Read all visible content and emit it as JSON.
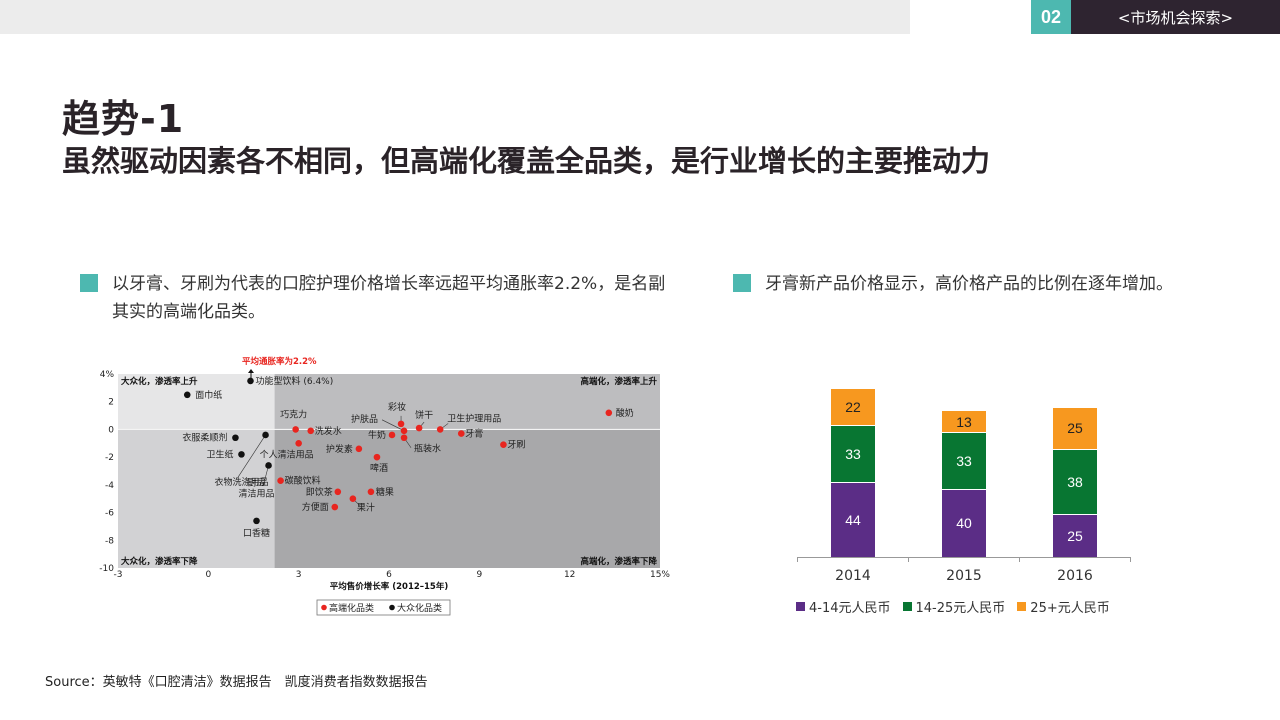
{
  "header": {
    "section_number": "02",
    "section_title": "<市场机会探索>",
    "accent_color": "#4db8b0",
    "dark_color": "#2e2430"
  },
  "title": {
    "main": "趋势-1",
    "subtitle": "虽然驱动因素各不相同，但高端化覆盖全品类，是行业增长的主要推动力"
  },
  "bullets": [
    {
      "text": "以牙膏、牙刷为代表的口腔护理价格增长率远超平均通胀率2.2%，是名副其实的高端化品类。"
    },
    {
      "text": "牙膏新产品价格显示，高价格产品的比例在逐年增加。"
    }
  ],
  "chart_data": [
    {
      "type": "scatter",
      "title": "",
      "xlabel": "平均售价增长率 (2012–15年)",
      "ylabel": "",
      "xlim": [
        -3,
        15
      ],
      "ylim": [
        -10,
        4
      ],
      "x_ticks": [
        "-3",
        "0",
        "3",
        "6",
        "9",
        "12",
        "15%"
      ],
      "y_ticks": [
        "4%",
        "2",
        "0",
        "-2",
        "-4",
        "-6",
        "-8",
        "-10"
      ],
      "annotation_inflation": "平均通胀率为2.2%",
      "inflation_x": 2.2,
      "quadrants": {
        "top_left": "大众化，渗透率上升",
        "top_right": "高端化，渗透率上升",
        "bottom_left": "大众化，渗透率下降",
        "bottom_right": "高端化，渗透率下降"
      },
      "legend": [
        "高端化品类",
        "大众化品类"
      ],
      "series": [
        {
          "name": "高端化品类",
          "color": "#e8251f",
          "points": [
            {
              "label": "巧克力",
              "x": 2.9,
              "y": 0.0
            },
            {
              "label": "洗发水",
              "x": 3.4,
              "y": -0.1
            },
            {
              "label": "个人清洁用品",
              "x": 3.0,
              "y": -1.0
            },
            {
              "label": "护发素",
              "x": 5.0,
              "y": -1.4
            },
            {
              "label": "啤酒",
              "x": 5.6,
              "y": -2.0
            },
            {
              "label": "牛奶",
              "x": 6.1,
              "y": -0.4
            },
            {
              "label": "彩妆",
              "x": 6.4,
              "y": 0.4
            },
            {
              "label": "护肤品",
              "x": 6.5,
              "y": -0.1
            },
            {
              "label": "瓶装水",
              "x": 6.5,
              "y": -0.6
            },
            {
              "label": "饼干",
              "x": 7.0,
              "y": 0.1
            },
            {
              "label": "卫生护理用品",
              "x": 7.7,
              "y": 0.0
            },
            {
              "label": "牙膏",
              "x": 8.4,
              "y": -0.3
            },
            {
              "label": "牙刷",
              "x": 9.8,
              "y": -1.1
            },
            {
              "label": "酸奶",
              "x": 13.3,
              "y": 1.2
            },
            {
              "label": "碳酸饮料",
              "x": 2.4,
              "y": -3.7
            },
            {
              "label": "即饮茶",
              "x": 4.3,
              "y": -4.5
            },
            {
              "label": "糖果",
              "x": 5.4,
              "y": -4.5
            },
            {
              "label": "果汁",
              "x": 4.8,
              "y": -5.0
            },
            {
              "label": "方便面",
              "x": 4.2,
              "y": -5.6
            }
          ]
        },
        {
          "name": "大众化品类",
          "color": "#111111",
          "points": [
            {
              "label": "面巾纸",
              "x": -0.7,
              "y": 2.5
            },
            {
              "label": "功能型饮料 (6.4%)",
              "x": 1.4,
              "y": 3.5
            },
            {
              "label": "衣服柔顺剂",
              "x": 0.9,
              "y": -0.6
            },
            {
              "label": "卫生纸",
              "x": 1.1,
              "y": -1.8
            },
            {
              "label": "衣物洗涤用品",
              "x": 1.9,
              "y": -0.4
            },
            {
              "label": "厨房清洁用品",
              "x": 2.0,
              "y": -2.6
            },
            {
              "label": "口香糖",
              "x": 1.6,
              "y": -6.6
            }
          ]
        }
      ]
    },
    {
      "type": "bar",
      "stacked": true,
      "title": "",
      "categories": [
        "2014",
        "2015",
        "2016"
      ],
      "series": [
        {
          "name": "4-14元人民币",
          "color": "#5b2d86",
          "values": [
            44,
            40,
            25
          ]
        },
        {
          "name": "14-25元人民币",
          "color": "#087632",
          "values": [
            33,
            33,
            38
          ]
        },
        {
          "name": "25+元人民币",
          "color": "#f7981f",
          "values": [
            22,
            13,
            25
          ]
        }
      ],
      "legend_position": "bottom"
    }
  ],
  "source": "Source：英敏特《口腔清洁》数据报告　凯度消费者指数数据报告"
}
